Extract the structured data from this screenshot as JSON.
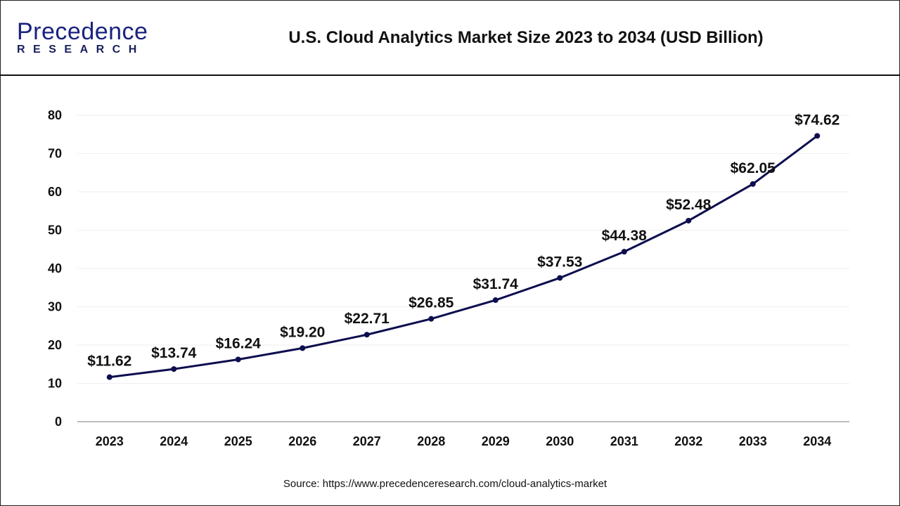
{
  "header": {
    "logo_main": "Precedence",
    "logo_sub": "RESEARCH",
    "title": "U.S. Cloud Analytics Market Size 2023 to 2034 (USD Billion)"
  },
  "source": "Source: https://www.precedenceresearch.com/cloud-analytics-market",
  "chart_data": {
    "type": "line",
    "title": "U.S. Cloud Analytics Market Size 2023 to 2034 (USD Billion)",
    "categories": [
      "2023",
      "2024",
      "2025",
      "2026",
      "2027",
      "2028",
      "2029",
      "2030",
      "2031",
      "2032",
      "2033",
      "2034"
    ],
    "values": [
      11.62,
      13.74,
      16.24,
      19.2,
      22.71,
      26.85,
      31.74,
      37.53,
      44.38,
      52.48,
      62.05,
      74.62
    ],
    "data_labels": [
      "$11.62",
      "$13.74",
      "$16.24",
      "$19.20",
      "$22.71",
      "$26.85",
      "$31.74",
      "$37.53",
      "$44.38",
      "$52.48",
      "$62.05",
      "$74.62"
    ],
    "yticks": [
      0,
      10,
      20,
      30,
      40,
      50,
      60,
      70,
      80
    ],
    "ylim": [
      0,
      80
    ],
    "grid": true,
    "line_color": "#0d0d4f",
    "xlabel": "",
    "ylabel": ""
  }
}
